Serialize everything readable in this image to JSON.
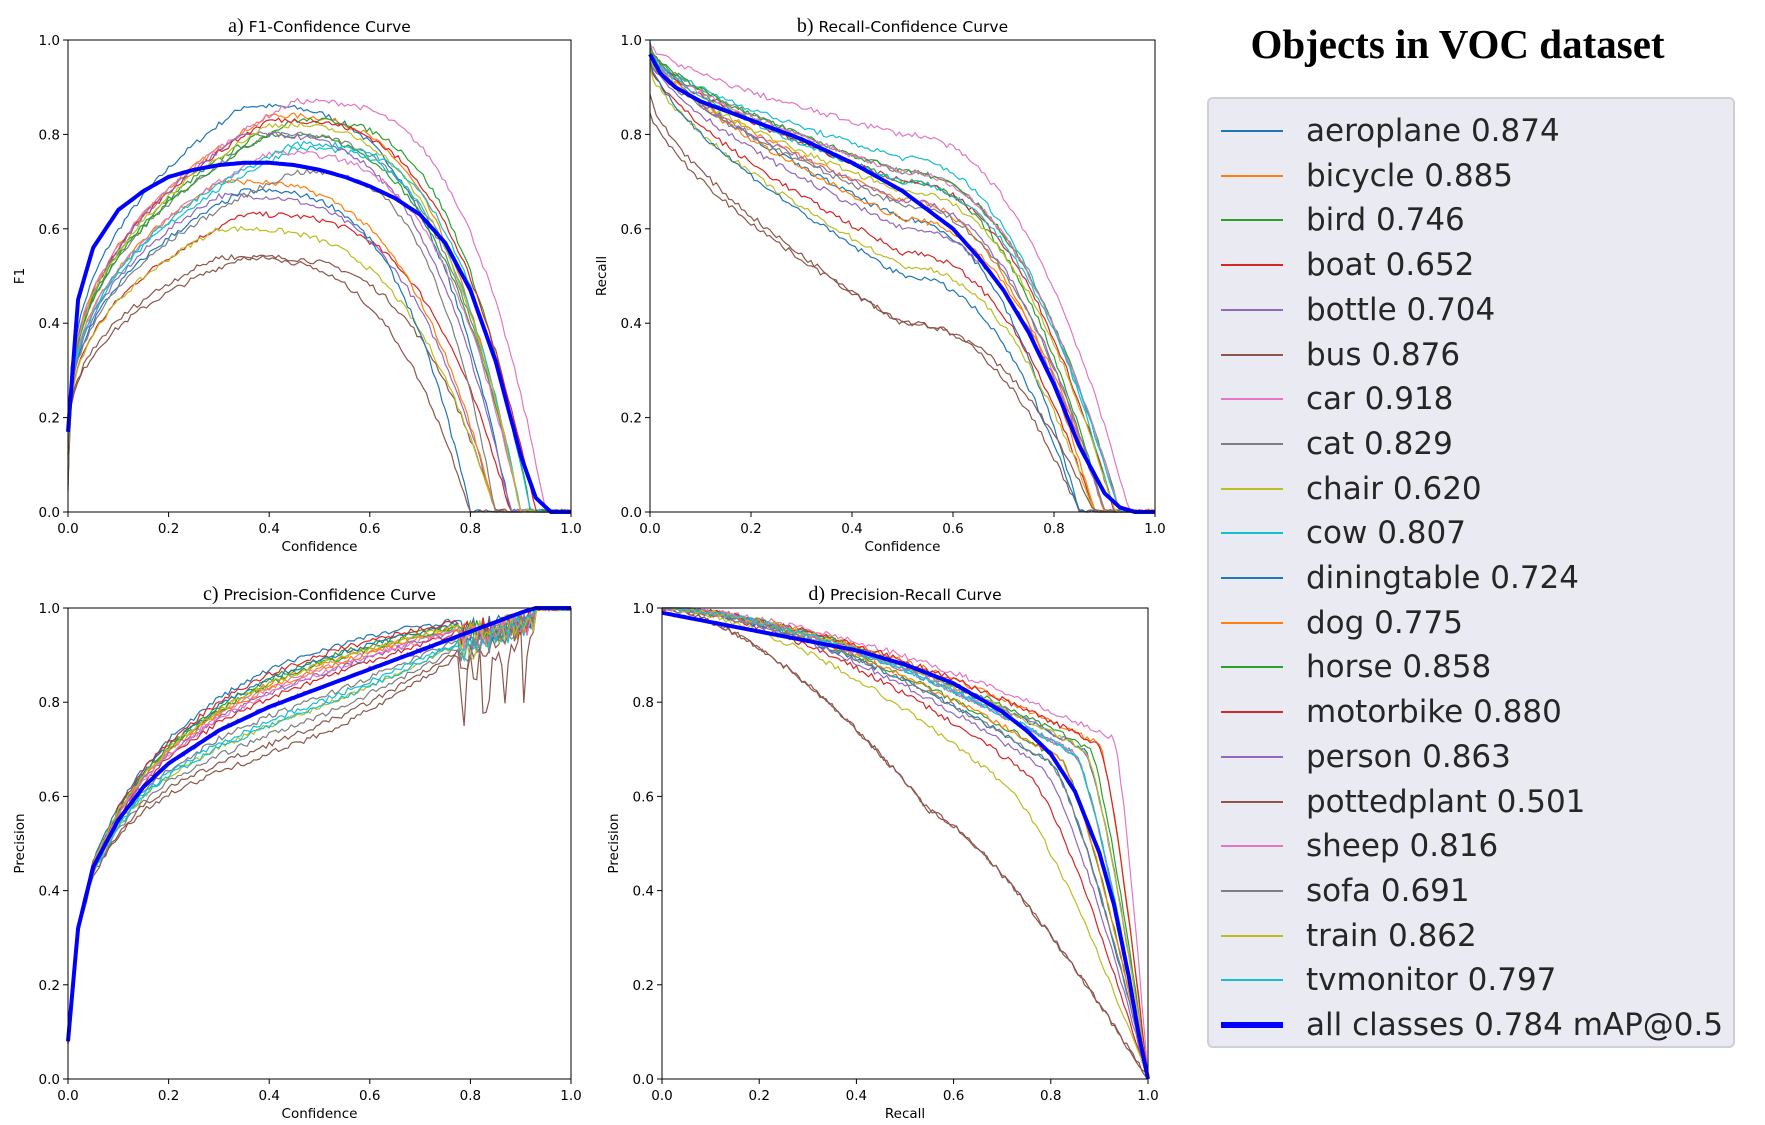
{
  "legend": {
    "title": "Objects in VOC dataset",
    "items": [
      {
        "label": "aeroplane 0.874",
        "color": "#1f77b4"
      },
      {
        "label": "bicycle 0.885",
        "color": "#ff7f0e"
      },
      {
        "label": "bird 0.746",
        "color": "#2ca02c"
      },
      {
        "label": "boat 0.652",
        "color": "#d62728"
      },
      {
        "label": "bottle 0.704",
        "color": "#9467bd"
      },
      {
        "label": "bus 0.876",
        "color": "#8c564b"
      },
      {
        "label": "car 0.918",
        "color": "#e377c2"
      },
      {
        "label": "cat 0.829",
        "color": "#7f7f7f"
      },
      {
        "label": "chair 0.620",
        "color": "#bcbd22"
      },
      {
        "label": "cow 0.807",
        "color": "#17becf"
      },
      {
        "label": "diningtable 0.724",
        "color": "#1f77b4"
      },
      {
        "label": "dog 0.775",
        "color": "#ff7f0e"
      },
      {
        "label": "horse 0.858",
        "color": "#2ca02c"
      },
      {
        "label": "motorbike 0.880",
        "color": "#d62728"
      },
      {
        "label": "person 0.863",
        "color": "#9467bd"
      },
      {
        "label": "pottedplant 0.501",
        "color": "#8c564b"
      },
      {
        "label": "sheep 0.816",
        "color": "#e377c2"
      },
      {
        "label": "sofa 0.691",
        "color": "#7f7f7f"
      },
      {
        "label": "train 0.862",
        "color": "#bcbd22"
      },
      {
        "label": "tvmonitor 0.797",
        "color": "#17becf"
      },
      {
        "label": "all classes 0.784 mAP@0.5",
        "color": "#0000ff",
        "bold": true
      }
    ]
  },
  "chart_data": [
    {
      "id": "f1",
      "type": "line",
      "panel_letter": "a)",
      "title": "F1-Confidence Curve",
      "xlabel": "Confidence",
      "ylabel": "F1",
      "xlim": [
        0,
        1
      ],
      "ylim": [
        0,
        1
      ],
      "xticks": [
        "0.0",
        "0.2",
        "0.4",
        "0.6",
        "0.8",
        "1.0"
      ],
      "yticks": [
        "0.0",
        "0.2",
        "0.4",
        "0.6",
        "0.8",
        "1.0"
      ],
      "all_classes": {
        "x": [
          0,
          0.02,
          0.05,
          0.1,
          0.15,
          0.2,
          0.25,
          0.3,
          0.35,
          0.4,
          0.45,
          0.5,
          0.55,
          0.6,
          0.65,
          0.7,
          0.75,
          0.8,
          0.85,
          0.9,
          0.93,
          0.96,
          1.0
        ],
        "y": [
          0.17,
          0.45,
          0.56,
          0.64,
          0.68,
          0.71,
          0.725,
          0.735,
          0.74,
          0.74,
          0.735,
          0.725,
          0.71,
          0.69,
          0.665,
          0.63,
          0.57,
          0.47,
          0.32,
          0.12,
          0.03,
          0.0,
          0.0
        ]
      },
      "class_peaks": [
        0.86,
        0.84,
        0.8,
        0.63,
        0.67,
        0.54,
        0.87,
        0.8,
        0.6,
        0.77,
        0.68,
        0.7,
        0.83,
        0.83,
        0.8,
        0.54,
        0.76,
        0.72,
        0.82,
        0.78
      ],
      "class_peak_x": [
        0.35,
        0.4,
        0.38,
        0.35,
        0.3,
        0.35,
        0.45,
        0.4,
        0.3,
        0.45,
        0.35,
        0.3,
        0.45,
        0.4,
        0.35,
        0.3,
        0.4,
        0.45,
        0.4,
        0.45
      ],
      "class_drop_x": [
        0.88,
        0.9,
        0.9,
        0.88,
        0.85,
        0.85,
        0.95,
        0.9,
        0.85,
        0.9,
        0.8,
        0.85,
        0.92,
        0.93,
        0.88,
        0.8,
        0.9,
        0.85,
        0.9,
        0.92
      ]
    },
    {
      "id": "recall",
      "type": "line",
      "panel_letter": "b)",
      "title": "Recall-Confidence Curve",
      "xlabel": "Confidence",
      "ylabel": "Recall",
      "xlim": [
        0,
        1
      ],
      "ylim": [
        0,
        1
      ],
      "xticks": [
        "0.0",
        "0.2",
        "0.4",
        "0.6",
        "0.8",
        "1.0"
      ],
      "yticks": [
        "0.0",
        "0.2",
        "0.4",
        "0.6",
        "0.8",
        "1.0"
      ],
      "all_classes": {
        "x": [
          0,
          0.02,
          0.05,
          0.1,
          0.15,
          0.2,
          0.3,
          0.4,
          0.5,
          0.6,
          0.65,
          0.7,
          0.75,
          0.8,
          0.85,
          0.9,
          0.93,
          0.96,
          1.0
        ],
        "y": [
          0.97,
          0.93,
          0.9,
          0.87,
          0.85,
          0.83,
          0.79,
          0.74,
          0.68,
          0.6,
          0.54,
          0.47,
          0.38,
          0.27,
          0.14,
          0.04,
          0.01,
          0.0,
          0.0
        ]
      },
      "class_start": [
        0.99,
        0.97,
        0.98,
        0.95,
        0.96,
        0.88,
        0.99,
        0.98,
        0.94,
        0.97,
        0.95,
        0.98,
        0.98,
        0.97,
        0.96,
        0.85,
        0.97,
        0.96,
        0.96,
        0.97
      ],
      "class_mid": [
        0.62,
        0.66,
        0.7,
        0.55,
        0.6,
        0.4,
        0.8,
        0.72,
        0.52,
        0.75,
        0.5,
        0.62,
        0.72,
        0.7,
        0.66,
        0.4,
        0.72,
        0.65,
        0.68,
        0.7
      ],
      "class_drop_x": [
        0.85,
        0.88,
        0.9,
        0.88,
        0.9,
        0.85,
        0.95,
        0.93,
        0.88,
        0.92,
        0.85,
        0.9,
        0.93,
        0.92,
        0.9,
        0.88,
        0.93,
        0.9,
        0.92,
        0.93
      ]
    },
    {
      "id": "precision",
      "type": "line",
      "panel_letter": "c)",
      "title": "Precision-Confidence Curve",
      "xlabel": "Confidence",
      "ylabel": "Precision",
      "xlim": [
        0,
        1
      ],
      "ylim": [
        0,
        1
      ],
      "xticks": [
        "0.0",
        "0.2",
        "0.4",
        "0.6",
        "0.8",
        "1.0"
      ],
      "yticks": [
        "0.0",
        "0.2",
        "0.4",
        "0.6",
        "0.8",
        "1.0"
      ],
      "all_classes": {
        "x": [
          0,
          0.02,
          0.05,
          0.1,
          0.15,
          0.2,
          0.3,
          0.4,
          0.5,
          0.6,
          0.7,
          0.8,
          0.85,
          0.9,
          0.93,
          0.96,
          1.0
        ],
        "y": [
          0.08,
          0.32,
          0.45,
          0.55,
          0.62,
          0.67,
          0.74,
          0.79,
          0.83,
          0.87,
          0.91,
          0.95,
          0.97,
          0.99,
          1.0,
          1.0,
          1.0
        ]
      },
      "class_offset": [
        0.08,
        0.05,
        0.06,
        0.02,
        0.0,
        -0.08,
        0.04,
        -0.02,
        -0.04,
        -0.03,
        0.06,
        0.04,
        0.05,
        0.07,
        0.03,
        -0.1,
        0.03,
        -0.06,
        0.05,
        -0.04
      ]
    },
    {
      "id": "pr",
      "type": "line",
      "panel_letter": "d)",
      "title": "Precision-Recall Curve",
      "xlabel": "Recall",
      "ylabel": "Precision",
      "xlim": [
        0,
        1
      ],
      "ylim": [
        0,
        1
      ],
      "xticks": [
        "0.0",
        "0.2",
        "0.4",
        "0.6",
        "0.8",
        "1.0"
      ],
      "yticks": [
        "0.0",
        "0.2",
        "0.4",
        "0.6",
        "0.8",
        "1.0"
      ],
      "all_classes": {
        "x": [
          0,
          0.05,
          0.1,
          0.2,
          0.3,
          0.4,
          0.5,
          0.6,
          0.7,
          0.75,
          0.8,
          0.85,
          0.9,
          0.93,
          0.96,
          0.98,
          1.0
        ],
        "y": [
          0.99,
          0.98,
          0.97,
          0.95,
          0.93,
          0.91,
          0.88,
          0.84,
          0.78,
          0.74,
          0.69,
          0.61,
          0.48,
          0.37,
          0.22,
          0.1,
          0.0
        ]
      },
      "class_knee": [
        0.87,
        0.9,
        0.82,
        0.75,
        0.78,
        0.55,
        0.93,
        0.85,
        0.7,
        0.85,
        0.8,
        0.82,
        0.88,
        0.9,
        0.87,
        0.55,
        0.85,
        0.8,
        0.87,
        0.85
      ]
    }
  ]
}
